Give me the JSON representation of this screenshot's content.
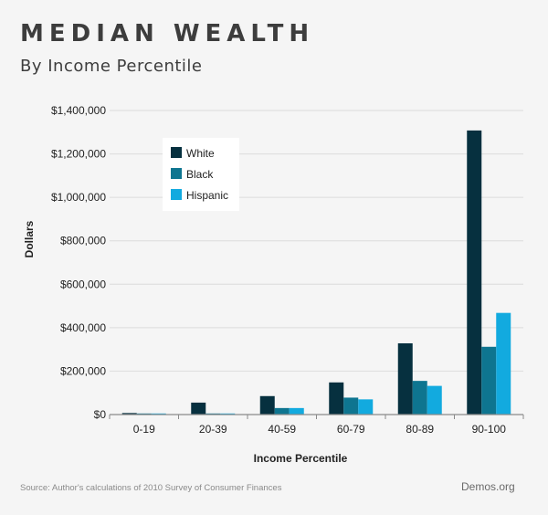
{
  "header": {
    "title": "MEDIAN WEALTH",
    "subtitle": "By Income Percentile"
  },
  "footer": {
    "source": "Source: Author's calculations of 2010 Survey of Consumer Finances",
    "brand": "Demos.org"
  },
  "chart_data": {
    "type": "bar",
    "title": "MEDIAN WEALTH",
    "subtitle": "By Income Percentile",
    "xlabel": "Income Percentile",
    "ylabel": "Dollars",
    "ylim": [
      0,
      1400000
    ],
    "yticks": [
      0,
      200000,
      400000,
      600000,
      800000,
      1000000,
      1200000,
      1400000
    ],
    "ytick_labels": [
      "$0",
      "$200,000",
      "$400,000",
      "$600,000",
      "$800,000",
      "$1,000,000",
      "$1,200,000",
      "$1,400,000"
    ],
    "categories": [
      "0-19",
      "20-39",
      "40-59",
      "60-79",
      "80-89",
      "90-100"
    ],
    "series": [
      {
        "name": "White",
        "color": "#06303f",
        "values": [
          7000,
          55000,
          85000,
          148000,
          328000,
          1308000
        ]
      },
      {
        "name": "Black",
        "color": "#0e7590",
        "values": [
          5000,
          5000,
          30000,
          78000,
          155000,
          312000
        ]
      },
      {
        "name": "Hispanic",
        "color": "#12aadf",
        "values": [
          5000,
          5000,
          30000,
          70000,
          132000,
          468000
        ]
      }
    ],
    "grid": true,
    "legend_position": "top-left"
  }
}
